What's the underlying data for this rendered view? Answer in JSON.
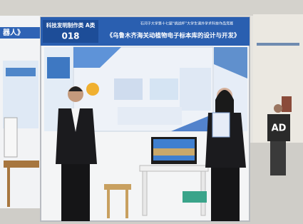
{
  "booth": {
    "category": "科技发明制作类 A类",
    "number": "018",
    "competition": "石河子大学第十七届“挑战杯”大学生课外学术科技作品竞赛",
    "project_title": "《乌鲁木齐海关动植物电子标本库的设计与开发》"
  },
  "left_booth": {
    "title_fragment": "器人》"
  },
  "background": {
    "shirt_text": "AD"
  }
}
